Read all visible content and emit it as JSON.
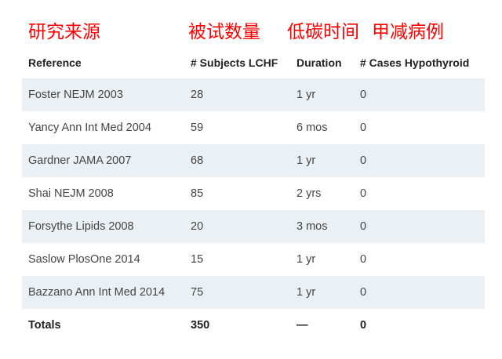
{
  "annotations": [
    "研究来源",
    "被试数量",
    "低碳时间",
    "甲减病例"
  ],
  "table": {
    "headers": [
      "Reference",
      "# Subjects LCHF",
      "Duration",
      "# Cases Hypothyroid"
    ],
    "rows": [
      [
        "Foster NEJM 2003",
        "28",
        "1 yr",
        "0"
      ],
      [
        "Yancy Ann Int Med 2004",
        "59",
        "6 mos",
        "0"
      ],
      [
        "Gardner JAMA 2007",
        "68",
        "1 yr",
        "0"
      ],
      [
        "Shai NEJM 2008",
        "85",
        "2 yrs",
        "0"
      ],
      [
        "Forsythe Lipids 2008",
        "20",
        "3 mos",
        "0"
      ],
      [
        "Saslow PlosOne 2014",
        "15",
        "1 yr",
        "0"
      ],
      [
        "Bazzano Ann Int Med 2014",
        "75",
        "1 yr",
        "0"
      ]
    ],
    "totals": [
      "Totals",
      "350",
      "—",
      "0"
    ]
  },
  "colors": {
    "annotation": "#ff0000",
    "row_stripe": "#eaf0f3"
  }
}
